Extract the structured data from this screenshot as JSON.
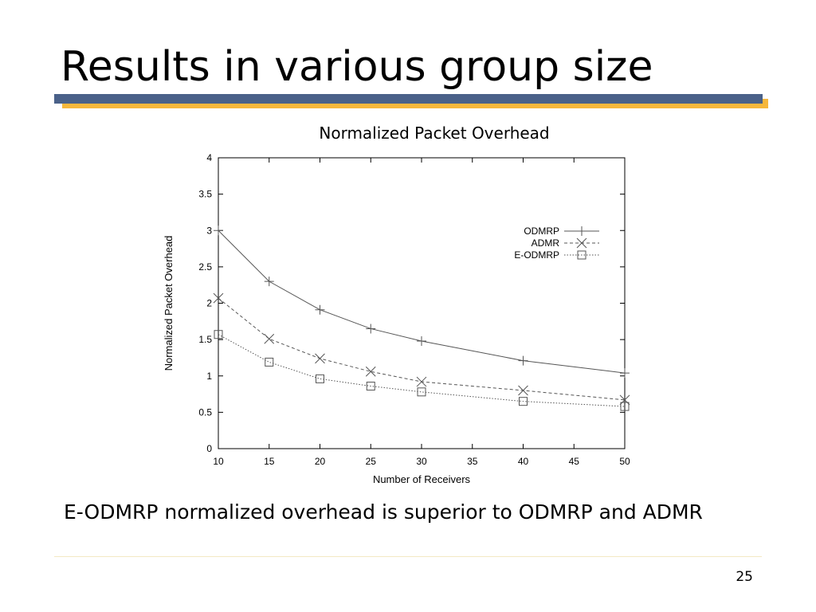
{
  "slide": {
    "title": "Results in various group size",
    "caption": "E-ODMRP normalized overhead is superior to ODMRP and ADMR",
    "page_number": "25",
    "colors": {
      "accent_blue": "#4a6189",
      "accent_gold": "#f6b73c"
    }
  },
  "chart_data": {
    "type": "line",
    "title": "Normalized Packet Overhead",
    "xlabel": "Number of Receivers",
    "ylabel": "Normalized Packet Overhead",
    "xlim": [
      10,
      50
    ],
    "ylim": [
      0,
      4
    ],
    "xticks": [
      10,
      15,
      20,
      25,
      30,
      35,
      40,
      45,
      50
    ],
    "yticks": [
      0,
      0.5,
      1,
      1.5,
      2,
      2.5,
      3,
      3.5,
      4
    ],
    "grid": false,
    "legend_position": "top-right",
    "series": [
      {
        "name": "ODMRP",
        "marker": "plus",
        "line_style": "solid",
        "x": [
          10,
          15,
          20,
          25,
          30,
          40,
          50
        ],
        "y": [
          3.0,
          2.3,
          1.91,
          1.65,
          1.48,
          1.21,
          1.04
        ]
      },
      {
        "name": "ADMR",
        "marker": "cross",
        "line_style": "dashed",
        "x": [
          10,
          15,
          20,
          25,
          30,
          40,
          50
        ],
        "y": [
          2.07,
          1.51,
          1.24,
          1.06,
          0.92,
          0.8,
          0.67
        ]
      },
      {
        "name": "E-ODMRP",
        "marker": "square",
        "line_style": "dotted",
        "x": [
          10,
          15,
          20,
          25,
          30,
          40,
          50
        ],
        "y": [
          1.57,
          1.19,
          0.96,
          0.86,
          0.78,
          0.65,
          0.58
        ]
      }
    ]
  }
}
